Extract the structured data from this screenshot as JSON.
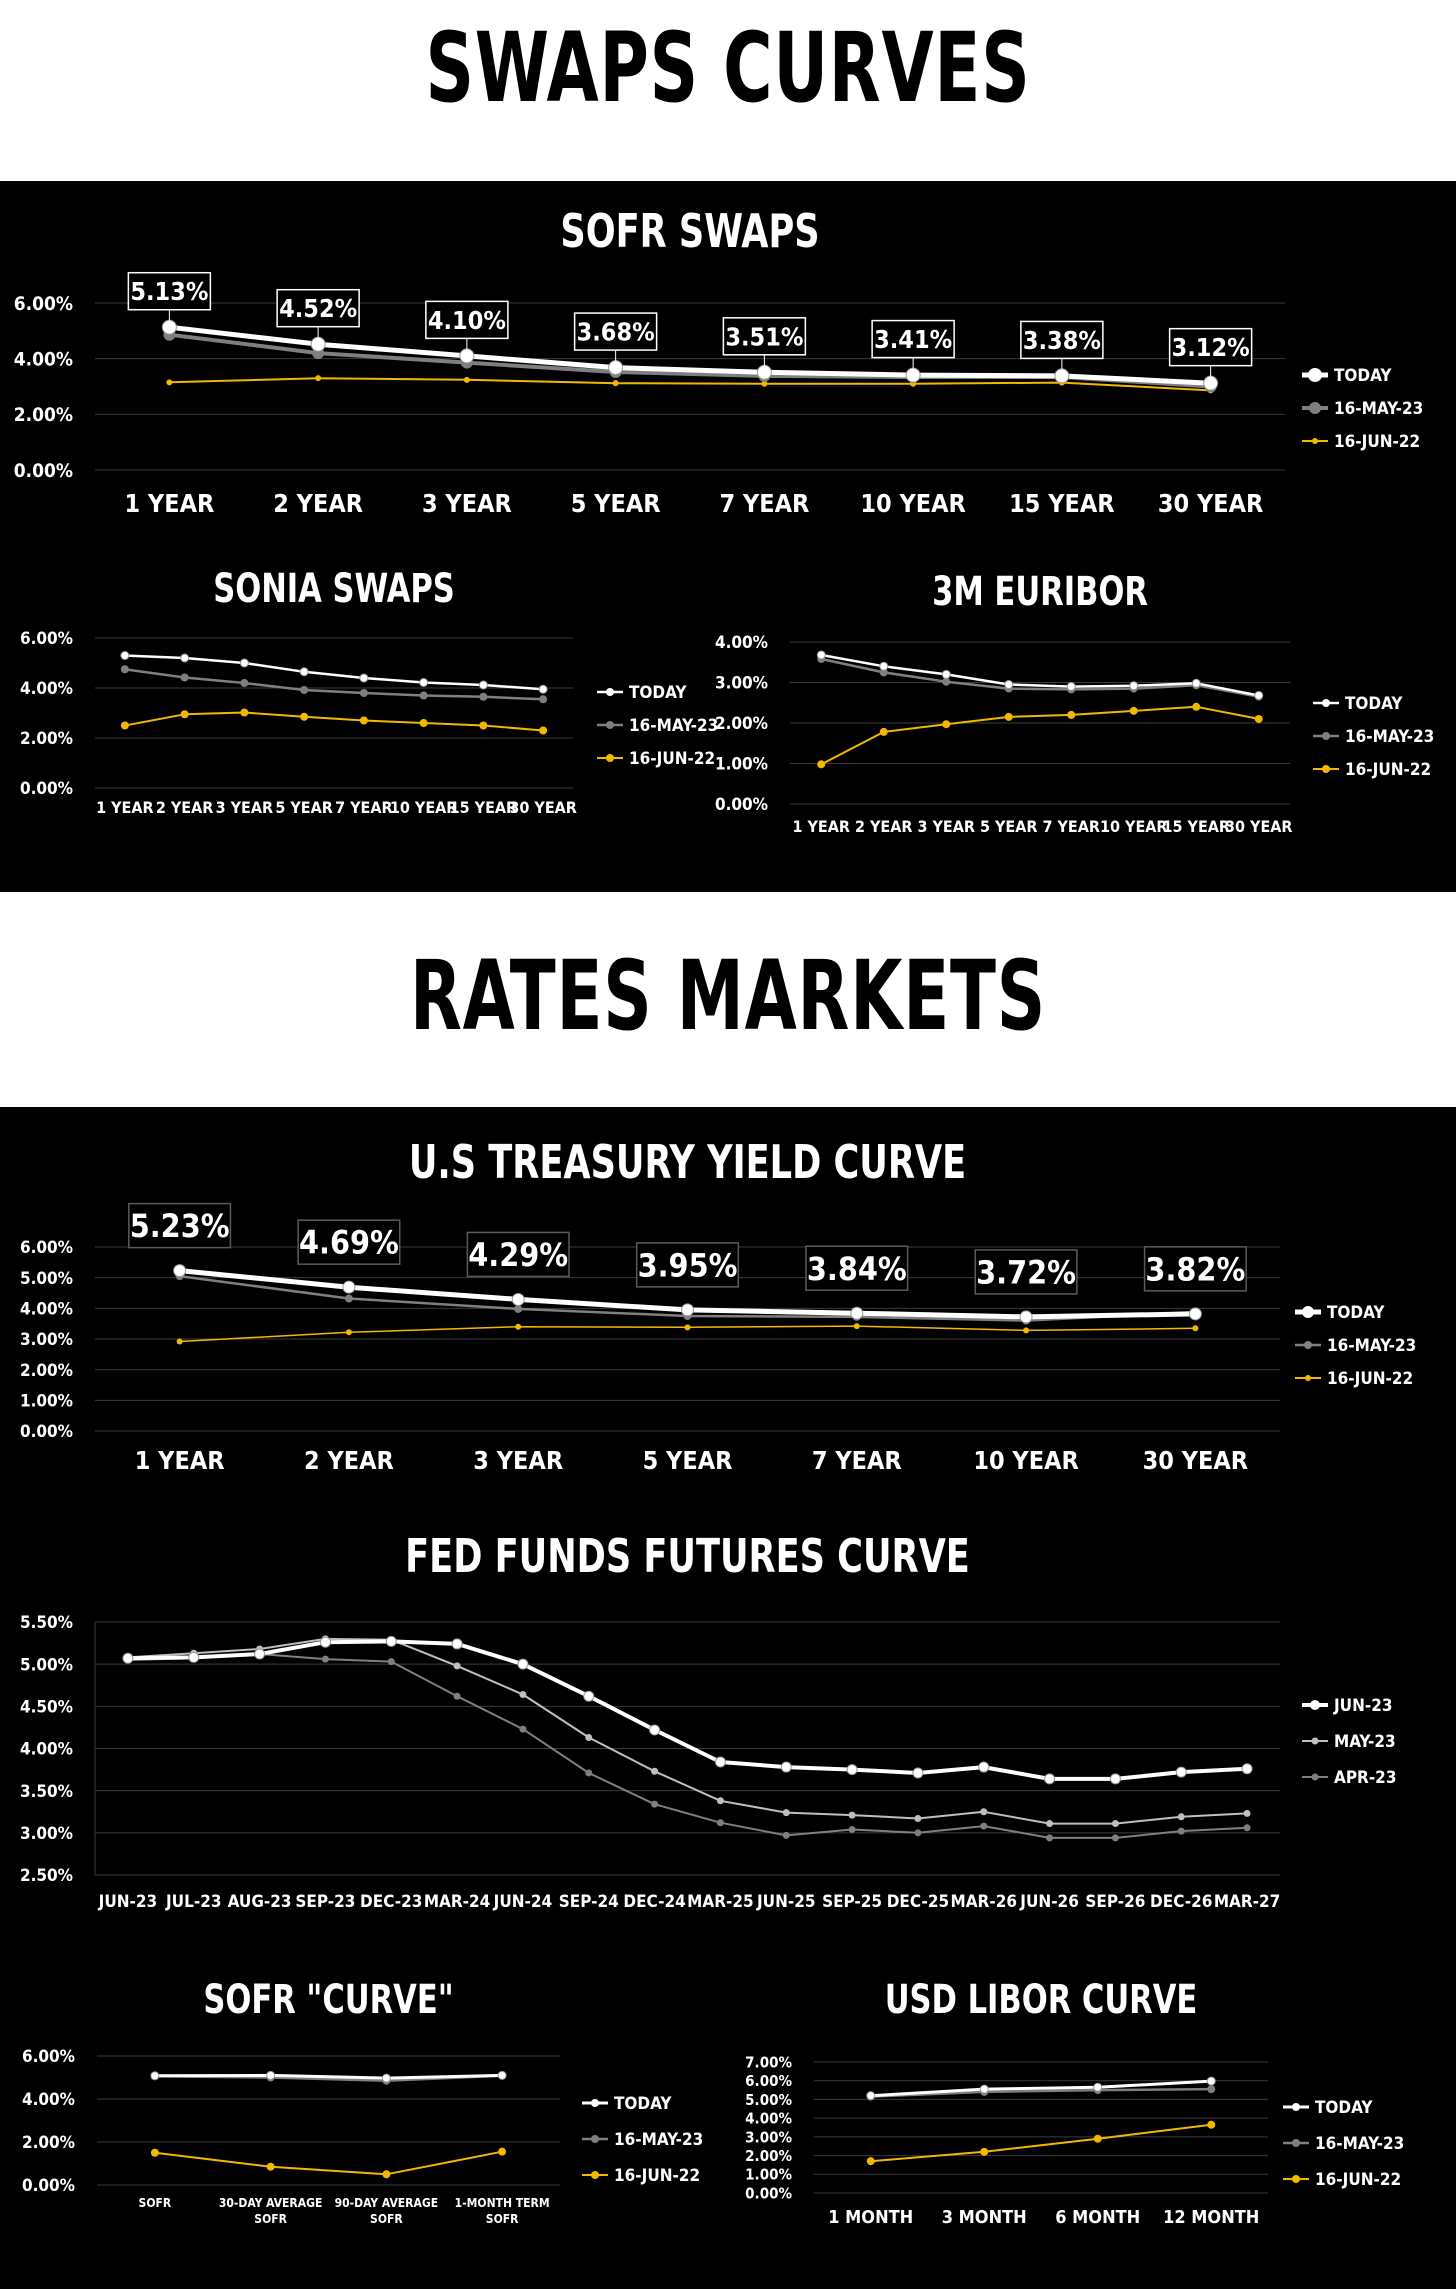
{
  "headings": {
    "swaps": "SWAPS CURVES",
    "rates": "RATES MARKETS"
  },
  "colors": {
    "background_band": "#000000",
    "page": "#ffffff",
    "today": "#ffffff",
    "prior_month": "#7f7f7f",
    "prior_year": "#f2b800",
    "gridline": "#3a3a3a"
  },
  "chart_data": [
    {
      "id": "sofr_swaps",
      "type": "line",
      "title": "SOFR SWAPS",
      "categories": [
        "1 YEAR",
        "2 YEAR",
        "3 YEAR",
        "5 YEAR",
        "7 YEAR",
        "10 YEAR",
        "15 YEAR",
        "30 YEAR"
      ],
      "ylim": [
        0,
        6
      ],
      "yticks": [
        "0.00%",
        "2.00%",
        "4.00%",
        "6.00%"
      ],
      "grid": true,
      "legend_placement": "right",
      "series": [
        {
          "name": "TODAY",
          "values": [
            5.13,
            4.52,
            4.1,
            3.68,
            3.51,
            3.41,
            3.38,
            3.12
          ],
          "color": "#ffffff"
        },
        {
          "name": "16-MAY-23",
          "values": [
            4.86,
            4.2,
            3.86,
            3.52,
            3.38,
            3.34,
            3.34,
            3.0
          ],
          "color": "#7f7f7f"
        },
        {
          "name": "16-JUN-22",
          "values": [
            3.15,
            3.3,
            3.24,
            3.12,
            3.1,
            3.1,
            3.14,
            2.86
          ],
          "color": "#f2b800"
        }
      ],
      "data_labels": [
        "5.13%",
        "4.52%",
        "4.10%",
        "3.68%",
        "3.51%",
        "3.41%",
        "3.38%",
        "3.12%"
      ]
    },
    {
      "id": "sonia_swaps",
      "type": "line",
      "title": "SONIA SWAPS",
      "categories": [
        "1 YEAR",
        "2 YEAR",
        "3 YEAR",
        "5 YEAR",
        "7 YEAR",
        "10 YEAR",
        "15 YEAR",
        "30 YEAR"
      ],
      "ylim": [
        0,
        6
      ],
      "yticks": [
        "0.00%",
        "2.00%",
        "4.00%",
        "6.00%"
      ],
      "grid": true,
      "legend_placement": "right",
      "series": [
        {
          "name": "TODAY",
          "values": [
            5.3,
            5.2,
            5.0,
            4.65,
            4.4,
            4.22,
            4.12,
            3.95
          ],
          "color": "#ffffff"
        },
        {
          "name": "16-MAY-23",
          "values": [
            4.75,
            4.42,
            4.2,
            3.92,
            3.8,
            3.7,
            3.65,
            3.55
          ],
          "color": "#7f7f7f"
        },
        {
          "name": "16-JUN-22",
          "values": [
            2.5,
            2.95,
            3.02,
            2.85,
            2.7,
            2.6,
            2.5,
            2.3
          ],
          "color": "#f2b800"
        }
      ]
    },
    {
      "id": "3m_euribor",
      "type": "line",
      "title": "3M EURIBOR",
      "categories": [
        "1 YEAR",
        "2 YEAR",
        "3 YEAR",
        "5 YEAR",
        "7 YEAR",
        "10 YEAR",
        "15 YEAR",
        "30 YEAR"
      ],
      "ylim": [
        0,
        4
      ],
      "yticks": [
        "0.00%",
        "1.00%",
        "2.00%",
        "3.00%",
        "4.00%"
      ],
      "grid": true,
      "legend_placement": "right",
      "series": [
        {
          "name": "TODAY",
          "values": [
            3.68,
            3.4,
            3.2,
            2.95,
            2.9,
            2.92,
            2.98,
            2.68
          ],
          "color": "#ffffff"
        },
        {
          "name": "16-MAY-23",
          "values": [
            3.58,
            3.25,
            3.02,
            2.85,
            2.83,
            2.85,
            2.93,
            2.65
          ],
          "color": "#7f7f7f"
        },
        {
          "name": "16-JUN-22",
          "values": [
            0.98,
            1.78,
            1.97,
            2.15,
            2.2,
            2.3,
            2.4,
            2.1
          ],
          "color": "#f2b800"
        }
      ]
    },
    {
      "id": "us_treasury",
      "type": "line",
      "title": "U.S TREASURY YIELD CURVE",
      "categories": [
        "1 YEAR",
        "2 YEAR",
        "3 YEAR",
        "5 YEAR",
        "7 YEAR",
        "10 YEAR",
        "30 YEAR"
      ],
      "ylim": [
        0,
        6
      ],
      "yticks": [
        "0.00%",
        "1.00%",
        "2.00%",
        "3.00%",
        "4.00%",
        "5.00%",
        "6.00%"
      ],
      "grid": true,
      "legend_placement": "right",
      "series": [
        {
          "name": "TODAY",
          "values": [
            5.23,
            4.69,
            4.29,
            3.95,
            3.84,
            3.72,
            3.82
          ],
          "color": "#ffffff"
        },
        {
          "name": "16-MAY-23",
          "values": [
            5.05,
            4.32,
            3.98,
            3.75,
            3.72,
            3.6,
            3.88
          ],
          "color": "#7f7f7f"
        },
        {
          "name": "16-JUN-22",
          "values": [
            2.92,
            3.22,
            3.4,
            3.38,
            3.42,
            3.28,
            3.35
          ],
          "color": "#f2b800"
        }
      ],
      "data_labels": [
        "5.23%",
        "4.69%",
        "4.29%",
        "3.95%",
        "3.84%",
        "3.72%",
        "3.82%"
      ]
    },
    {
      "id": "fed_funds",
      "type": "line",
      "title": "FED FUNDS FUTURES CURVE",
      "categories": [
        "JUN-23",
        "JUL-23",
        "AUG-23",
        "SEP-23",
        "DEC-23",
        "MAR-24",
        "JUN-24",
        "SEP-24",
        "DEC-24",
        "MAR-25",
        "JUN-25",
        "SEP-25",
        "DEC-25",
        "MAR-26",
        "JUN-26",
        "SEP-26",
        "DEC-26",
        "MAR-27"
      ],
      "ylim": [
        2.5,
        5.5
      ],
      "yticks": [
        "2.50%",
        "3.00%",
        "3.50%",
        "4.00%",
        "4.50%",
        "5.00%",
        "5.50%"
      ],
      "grid": true,
      "legend_placement": "right",
      "series": [
        {
          "name": "JUN-23",
          "values": [
            5.07,
            5.08,
            5.12,
            5.26,
            5.27,
            5.24,
            5.0,
            4.62,
            4.22,
            3.84,
            3.78,
            3.75,
            3.71,
            3.78,
            3.64,
            3.64,
            3.72,
            3.76
          ],
          "color": "#ffffff"
        },
        {
          "name": "MAY-23",
          "values": [
            5.08,
            5.13,
            5.18,
            5.3,
            5.29,
            4.98,
            4.64,
            4.13,
            3.73,
            3.38,
            3.24,
            3.21,
            3.17,
            3.25,
            3.11,
            3.11,
            3.19,
            3.23
          ],
          "color": "#bfbfbf"
        },
        {
          "name": "APR-23",
          "values": [
            5.05,
            5.07,
            5.12,
            5.06,
            5.03,
            4.62,
            4.23,
            3.71,
            3.34,
            3.12,
            2.97,
            3.04,
            3.0,
            3.08,
            2.94,
            2.94,
            3.02,
            3.06
          ],
          "color": "#7f7f7f"
        }
      ]
    },
    {
      "id": "sofr_curve",
      "type": "line",
      "title": "SOFR \"CURVE\"",
      "categories": [
        "SOFR",
        "30-DAY AVERAGE SOFR",
        "90-DAY AVERAGE SOFR",
        "1-MONTH TERM SOFR"
      ],
      "ylim": [
        0,
        6
      ],
      "yticks": [
        "0.00%",
        "2.00%",
        "4.00%",
        "6.00%"
      ],
      "grid": true,
      "legend_placement": "right",
      "series": [
        {
          "name": "TODAY",
          "values": [
            5.08,
            5.1,
            4.97,
            5.1
          ],
          "color": "#ffffff"
        },
        {
          "name": "16-MAY-23",
          "values": [
            5.06,
            5.0,
            4.85,
            5.08
          ],
          "color": "#7f7f7f"
        },
        {
          "name": "16-JUN-22",
          "values": [
            1.5,
            0.85,
            0.5,
            1.55
          ],
          "color": "#f2b800"
        }
      ]
    },
    {
      "id": "usd_libor",
      "type": "line",
      "title": "USD LIBOR CURVE",
      "categories": [
        "1 MONTH",
        "3 MONTH",
        "6 MONTH",
        "12 MONTH"
      ],
      "ylim": [
        0,
        7
      ],
      "yticks": [
        "0.00%",
        "1.00%",
        "2.00%",
        "3.00%",
        "4.00%",
        "5.00%",
        "6.00%",
        "7.00%"
      ],
      "grid": true,
      "legend_placement": "right",
      "series": [
        {
          "name": "TODAY",
          "values": [
            5.2,
            5.55,
            5.65,
            5.98
          ],
          "color": "#ffffff"
        },
        {
          "name": "16-MAY-23",
          "values": [
            5.15,
            5.4,
            5.5,
            5.55
          ],
          "color": "#7f7f7f"
        },
        {
          "name": "16-JUN-22",
          "values": [
            1.7,
            2.2,
            2.9,
            3.65
          ],
          "color": "#f2b800"
        }
      ]
    }
  ]
}
